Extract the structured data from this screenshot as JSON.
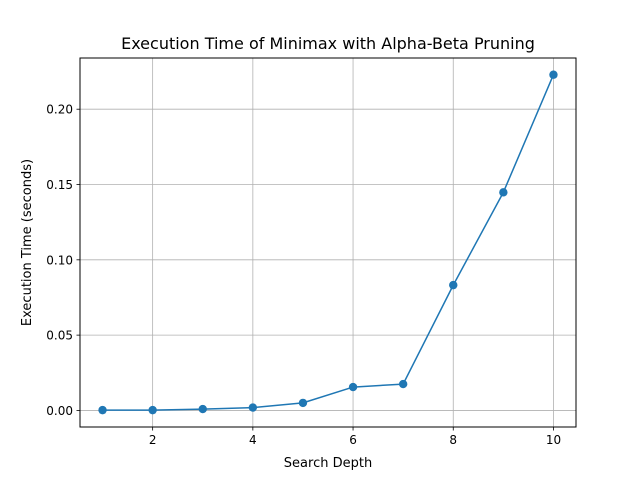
{
  "chart_data": {
    "type": "line",
    "title": "Execution Time of Minimax with Alpha-Beta Pruning",
    "xlabel": "Search Depth",
    "ylabel": "Execution Time (seconds)",
    "xlim": [
      0.55,
      10.45
    ],
    "ylim": [
      -0.011,
      0.234
    ],
    "xticks": [
      2,
      4,
      6,
      8,
      10
    ],
    "xtick_labels": [
      "2",
      "4",
      "6",
      "8",
      "10"
    ],
    "yticks": [
      0.0,
      0.05,
      0.1,
      0.15,
      0.2
    ],
    "ytick_labels": [
      "0.00",
      "0.05",
      "0.10",
      "0.15",
      "0.20"
    ],
    "grid": true,
    "series": [
      {
        "color": "#1f77b4",
        "marker": "circle",
        "x": [
          1,
          2,
          3,
          4,
          5,
          6,
          7,
          8,
          9,
          10
        ],
        "y": [
          0.0002,
          0.0002,
          0.0009,
          0.0019,
          0.005,
          0.0155,
          0.0175,
          0.0832,
          0.1448,
          0.2229
        ]
      }
    ]
  }
}
